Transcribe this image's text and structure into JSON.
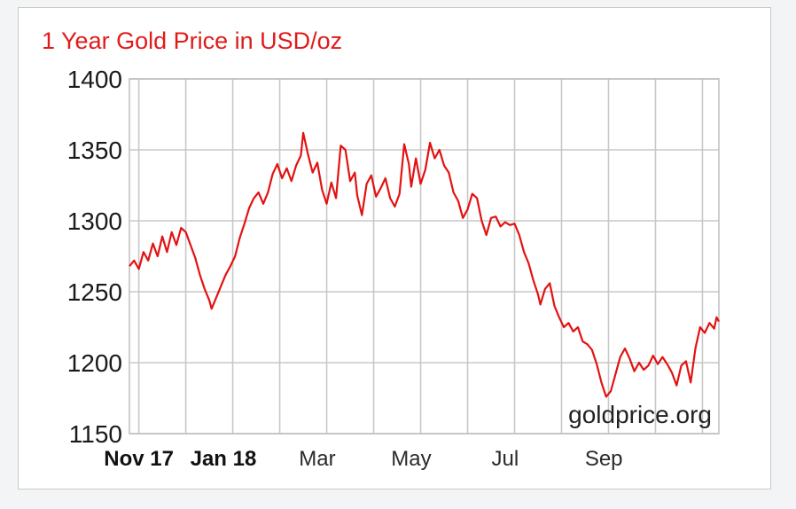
{
  "chart_data": {
    "type": "line",
    "title": "1 Year Gold Price in USD/oz",
    "xlabel": "",
    "ylabel": "",
    "ylim": [
      1150,
      1400
    ],
    "yticks": [
      1150,
      1200,
      1250,
      1300,
      1350,
      1400
    ],
    "x_ticks": [
      {
        "label": "Nov 17",
        "bold": true,
        "x": 0.2
      },
      {
        "label": "Jan 18",
        "bold": true,
        "x": 2.0
      },
      {
        "label": "Mar",
        "bold": false,
        "x": 4.0
      },
      {
        "label": "May",
        "bold": false,
        "x": 6.0
      },
      {
        "label": "Jul",
        "bold": false,
        "x": 8.0
      },
      {
        "label": "Sep",
        "bold": false,
        "x": 10.1
      }
    ],
    "watermark": "goldprice.org",
    "grid": true,
    "colors": {
      "line": "#e31212",
      "title": "#e01b1b",
      "grid": "#c8c8c8"
    },
    "series": [
      {
        "values": [
          [
            0.0,
            1268
          ],
          [
            0.1,
            1272
          ],
          [
            0.2,
            1266
          ],
          [
            0.3,
            1278
          ],
          [
            0.4,
            1272
          ],
          [
            0.5,
            1284
          ],
          [
            0.6,
            1275
          ],
          [
            0.7,
            1289
          ],
          [
            0.8,
            1278
          ],
          [
            0.9,
            1292
          ],
          [
            1.0,
            1283
          ],
          [
            1.1,
            1295
          ],
          [
            1.2,
            1292
          ],
          [
            1.3,
            1283
          ],
          [
            1.4,
            1274
          ],
          [
            1.5,
            1262
          ],
          [
            1.6,
            1252
          ],
          [
            1.7,
            1244
          ],
          [
            1.75,
            1238
          ],
          [
            1.85,
            1246
          ],
          [
            1.95,
            1254
          ],
          [
            2.05,
            1262
          ],
          [
            2.15,
            1268
          ],
          [
            2.25,
            1275
          ],
          [
            2.35,
            1288
          ],
          [
            2.45,
            1298
          ],
          [
            2.55,
            1309
          ],
          [
            2.65,
            1316
          ],
          [
            2.75,
            1320
          ],
          [
            2.85,
            1312
          ],
          [
            2.95,
            1320
          ],
          [
            3.05,
            1333
          ],
          [
            3.15,
            1340
          ],
          [
            3.25,
            1330
          ],
          [
            3.35,
            1337
          ],
          [
            3.45,
            1328
          ],
          [
            3.55,
            1339
          ],
          [
            3.65,
            1346
          ],
          [
            3.7,
            1362
          ],
          [
            3.8,
            1347
          ],
          [
            3.9,
            1334
          ],
          [
            4.0,
            1341
          ],
          [
            4.1,
            1322
          ],
          [
            4.2,
            1312
          ],
          [
            4.3,
            1327
          ],
          [
            4.4,
            1316
          ],
          [
            4.5,
            1353
          ],
          [
            4.6,
            1350
          ],
          [
            4.7,
            1328
          ],
          [
            4.8,
            1334
          ],
          [
            4.85,
            1318
          ],
          [
            4.95,
            1304
          ],
          [
            5.05,
            1326
          ],
          [
            5.15,
            1332
          ],
          [
            5.25,
            1317
          ],
          [
            5.35,
            1323
          ],
          [
            5.45,
            1330
          ],
          [
            5.55,
            1316
          ],
          [
            5.65,
            1310
          ],
          [
            5.75,
            1319
          ],
          [
            5.85,
            1354
          ],
          [
            5.95,
            1340
          ],
          [
            6.0,
            1324
          ],
          [
            6.1,
            1344
          ],
          [
            6.2,
            1326
          ],
          [
            6.3,
            1336
          ],
          [
            6.4,
            1355
          ],
          [
            6.5,
            1344
          ],
          [
            6.6,
            1350
          ],
          [
            6.7,
            1339
          ],
          [
            6.8,
            1334
          ],
          [
            6.9,
            1320
          ],
          [
            7.0,
            1314
          ],
          [
            7.1,
            1302
          ],
          [
            7.2,
            1308
          ],
          [
            7.3,
            1319
          ],
          [
            7.4,
            1316
          ],
          [
            7.5,
            1300
          ],
          [
            7.6,
            1290
          ],
          [
            7.7,
            1302
          ],
          [
            7.8,
            1303
          ],
          [
            7.9,
            1296
          ],
          [
            8.0,
            1299
          ],
          [
            8.1,
            1297
          ],
          [
            8.2,
            1298
          ],
          [
            8.3,
            1290
          ],
          [
            8.4,
            1278
          ],
          [
            8.5,
            1270
          ],
          [
            8.6,
            1258
          ],
          [
            8.7,
            1248
          ],
          [
            8.75,
            1241
          ],
          [
            8.85,
            1252
          ],
          [
            8.95,
            1256
          ],
          [
            9.05,
            1240
          ],
          [
            9.15,
            1232
          ],
          [
            9.25,
            1225
          ],
          [
            9.35,
            1228
          ],
          [
            9.45,
            1222
          ],
          [
            9.55,
            1225
          ],
          [
            9.65,
            1215
          ],
          [
            9.75,
            1213
          ],
          [
            9.85,
            1209
          ],
          [
            9.95,
            1199
          ],
          [
            10.05,
            1186
          ],
          [
            10.15,
            1176
          ],
          [
            10.25,
            1180
          ],
          [
            10.35,
            1192
          ],
          [
            10.45,
            1204
          ],
          [
            10.55,
            1210
          ],
          [
            10.65,
            1203
          ],
          [
            10.75,
            1194
          ],
          [
            10.85,
            1200
          ],
          [
            10.95,
            1195
          ],
          [
            11.05,
            1198
          ],
          [
            11.15,
            1205
          ],
          [
            11.25,
            1199
          ],
          [
            11.35,
            1204
          ],
          [
            11.45,
            1199
          ],
          [
            11.55,
            1193
          ],
          [
            11.65,
            1184
          ],
          [
            11.75,
            1198
          ],
          [
            11.85,
            1201
          ],
          [
            11.95,
            1186
          ],
          [
            12.05,
            1210
          ],
          [
            12.15,
            1225
          ],
          [
            12.25,
            1221
          ],
          [
            12.35,
            1228
          ],
          [
            12.45,
            1224
          ],
          [
            12.5,
            1232
          ],
          [
            12.55,
            1229
          ]
        ]
      }
    ]
  }
}
